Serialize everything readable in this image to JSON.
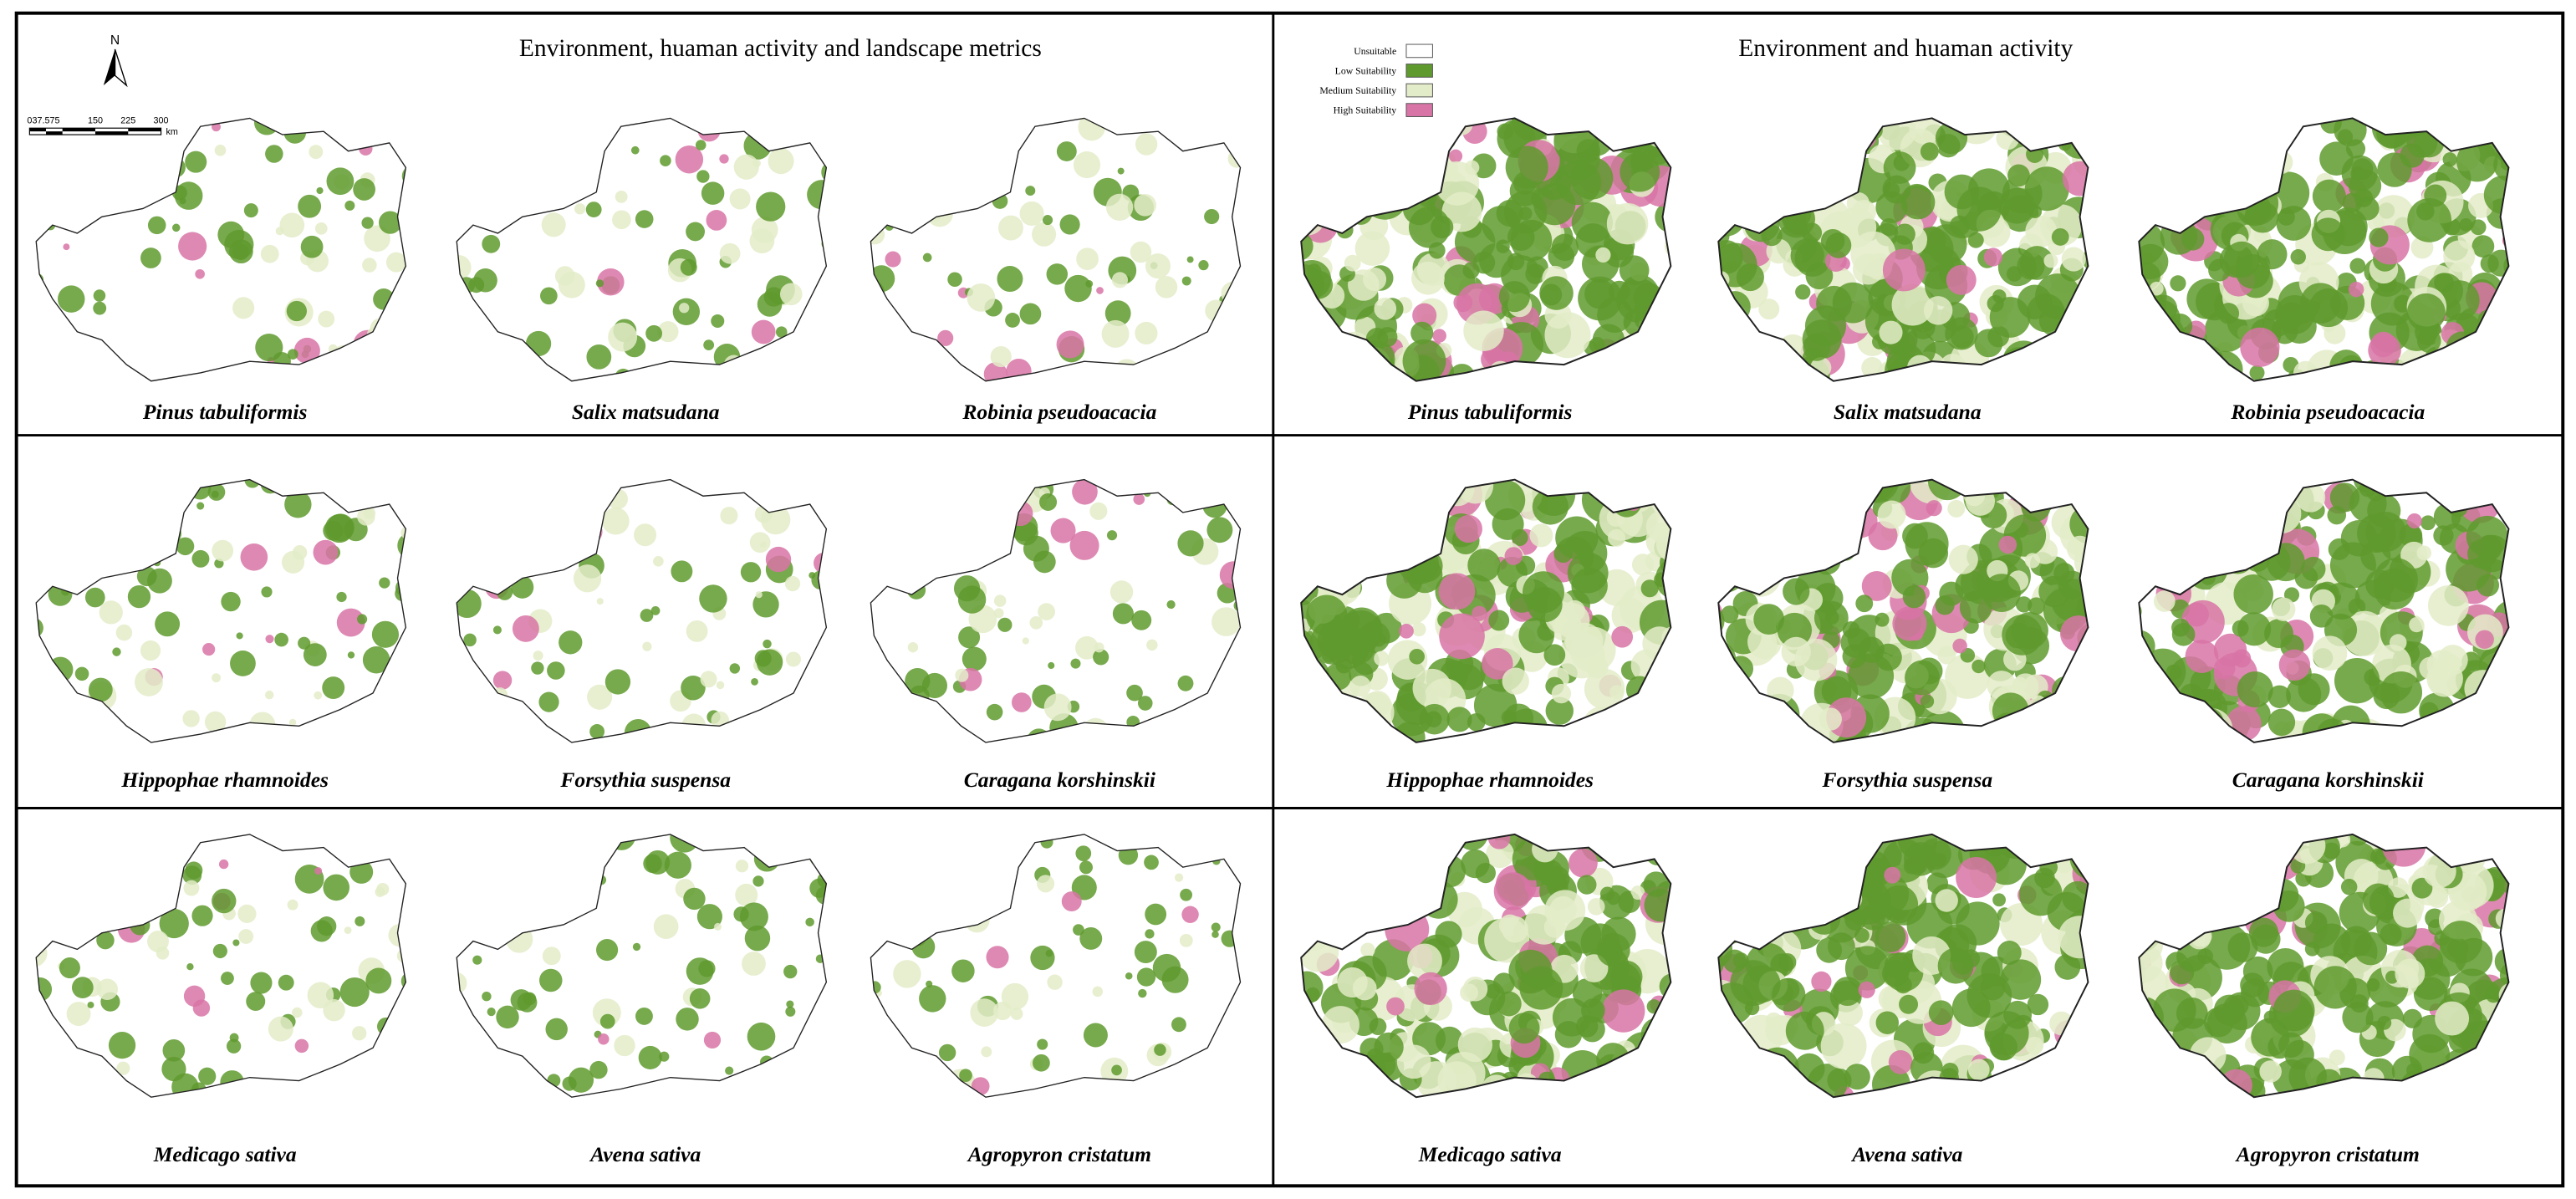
{
  "north": "N",
  "scale_bar": {
    "labels": [
      "0",
      "37.575",
      "150",
      "225",
      "300"
    ],
    "unit": "km"
  },
  "legend": [
    {
      "label": "Unsuitable",
      "color": "#ffffff"
    },
    {
      "label": "Low Suitability",
      "color": "#5f9a2e"
    },
    {
      "label": "Medium Suitability",
      "color": "#e3ecc8"
    },
    {
      "label": "High Suitability",
      "color": "#d874a6"
    }
  ],
  "panels": [
    {
      "title": "Environment, huaman activity and landscape metrics",
      "species": [
        "Pinus tabuliformis",
        "Salix matsudana",
        "Robinia pseudoacacia",
        "Hippophae rhamnoides",
        "Forsythia suspensa",
        "Caragana korshinskii",
        "Medicago sativa",
        "Avena sativa",
        "Agropyron cristatum"
      ]
    },
    {
      "title": "Environment and huaman activity",
      "species": [
        "Pinus tabuliformis",
        "Salix matsudana",
        "Robinia pseudoacacia",
        "Hippophae rhamnoides",
        "Forsythia suspensa",
        "Caragana korshinskii",
        "Medicago sativa",
        "Avena sativa",
        "Agropyron cristatum"
      ]
    }
  ]
}
